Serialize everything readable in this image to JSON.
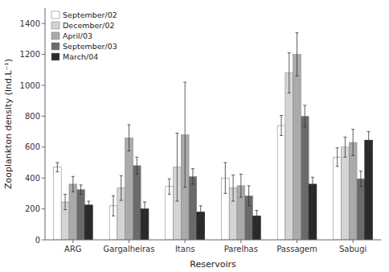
{
  "chart_data": {
    "type": "bar",
    "categories": [
      "ARG",
      "Gargalheiras",
      "Itans",
      "Parelhas",
      "Passagem",
      "Sabugi"
    ],
    "series": [
      {
        "name": "September/02",
        "color": "#ffffff",
        "values": [
          470,
          220,
          345,
          400,
          740,
          535
        ],
        "errors": [
          30,
          65,
          50,
          100,
          65,
          60
        ]
      },
      {
        "name": "December/02",
        "color": "#d4d4d4",
        "values": [
          245,
          335,
          470,
          335,
          1080,
          600
        ],
        "errors": [
          50,
          80,
          220,
          85,
          130,
          65
        ]
      },
      {
        "name": "April/03",
        "color": "#aaaaaa",
        "values": [
          360,
          660,
          680,
          350,
          1200,
          630
        ],
        "errors": [
          50,
          85,
          340,
          75,
          140,
          85
        ]
      },
      {
        "name": "September/03",
        "color": "#6a6a6a",
        "values": [
          325,
          480,
          410,
          285,
          800,
          395
        ],
        "errors": [
          30,
          55,
          50,
          65,
          70,
          50
        ]
      },
      {
        "name": "March/04",
        "color": "#2a2a2a",
        "values": [
          225,
          200,
          180,
          155,
          360,
          645
        ],
        "errors": [
          25,
          45,
          40,
          35,
          45,
          55
        ]
      }
    ],
    "ylabel": "Zooplankton density (Ind.L⁻¹)",
    "xlabel": "Reservoirs",
    "ylim": [
      0,
      1500
    ],
    "yticks": [
      0,
      200,
      400,
      600,
      800,
      1000,
      1200,
      1400
    ],
    "grid": false,
    "legend": "upper left"
  }
}
